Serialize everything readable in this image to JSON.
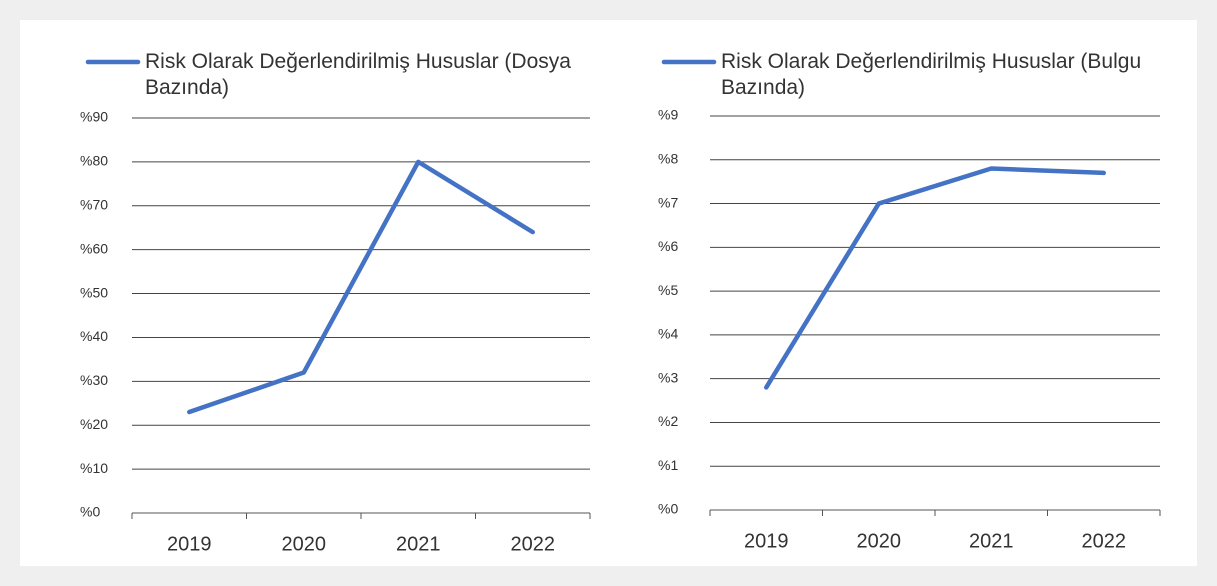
{
  "chart_data": [
    {
      "type": "line",
      "categories": [
        "2019",
        "2020",
        "2021",
        "2022"
      ],
      "series": [
        {
          "name": "Risk Olarak Değerlendirilmiş Hususlar (Dosya Bazında)",
          "color": "#4472c4",
          "values": [
            23,
            32,
            80,
            64
          ]
        }
      ],
      "ylim": [
        0,
        90
      ],
      "yticks": [
        {
          "value": 0,
          "label": "%0"
        },
        {
          "value": 10,
          "label": "%10"
        },
        {
          "value": 20,
          "label": "%20"
        },
        {
          "value": 30,
          "label": "%30"
        },
        {
          "value": 40,
          "label": "%40"
        },
        {
          "value": 50,
          "label": "%50"
        },
        {
          "value": 60,
          "label": "%60"
        },
        {
          "value": 70,
          "label": "%70"
        },
        {
          "value": 80,
          "label": "%80"
        },
        {
          "value": 90,
          "label": "%90"
        }
      ],
      "grid": true,
      "legend": "top"
    },
    {
      "type": "line",
      "categories": [
        "2019",
        "2020",
        "2021",
        "2022"
      ],
      "series": [
        {
          "name": "Risk Olarak Değerlendirilmiş Hususlar (Bulgu Bazında)",
          "color": "#4472c4",
          "values": [
            2.8,
            7.0,
            7.8,
            7.7
          ]
        }
      ],
      "ylim": [
        0,
        9
      ],
      "yticks": [
        {
          "value": 0,
          "label": "%0"
        },
        {
          "value": 1,
          "label": "%1"
        },
        {
          "value": 2,
          "label": "%2"
        },
        {
          "value": 3,
          "label": "%3"
        },
        {
          "value": 4,
          "label": "%4"
        },
        {
          "value": 5,
          "label": "%5"
        },
        {
          "value": 6,
          "label": "%6"
        },
        {
          "value": 7,
          "label": "%7"
        },
        {
          "value": 8,
          "label": "%8"
        },
        {
          "value": 9,
          "label": "%9"
        }
      ],
      "grid": true,
      "legend": "top"
    }
  ]
}
